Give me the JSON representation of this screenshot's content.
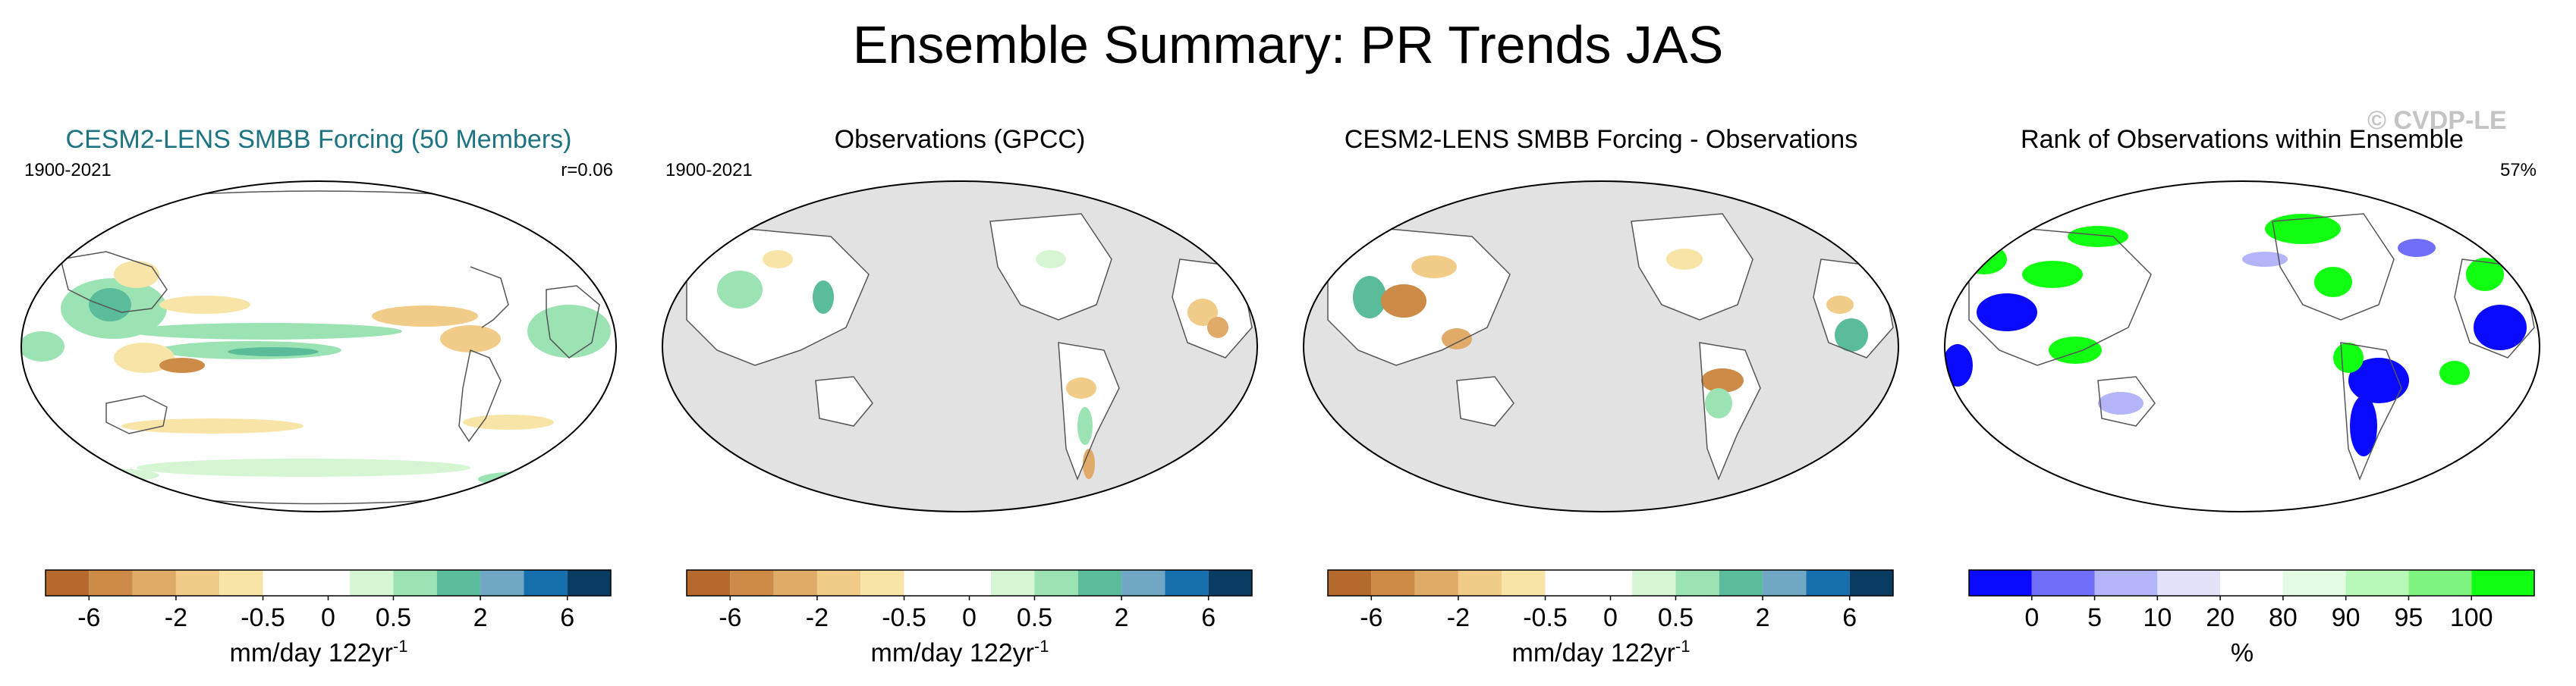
{
  "title": "Ensemble Summary: PR Trends JAS",
  "watermark": "© CVDP-LE",
  "panels": [
    {
      "title": "CESM2-LENS SMBB Forcing (50 Members)",
      "left_label": "1900-2021",
      "right_label": "r=0.06",
      "colorbar": {
        "colors": [
          "#b46a2c",
          "#cd8b48",
          "#e0aa68",
          "#f1cc88",
          "#f8e4a6",
          "#ffffff",
          "#ffffff",
          "#d5f5d3",
          "#9ce3b4",
          "#5bbc9c",
          "#70a7c4",
          "#1570ad",
          "#083c63"
        ],
        "ticks": [
          "-6",
          "-2",
          "-0.5",
          "0",
          "0.5",
          "2",
          "6"
        ],
        "units": "mm/day 122yr",
        "units_sup": "-1"
      }
    },
    {
      "title": "Observations (GPCC)",
      "left_label": "1900-2021",
      "right_label": "",
      "colorbar": {
        "colors": [
          "#b46a2c",
          "#cd8b48",
          "#e0aa68",
          "#f1cc88",
          "#f8e4a6",
          "#ffffff",
          "#ffffff",
          "#d5f5d3",
          "#9ce3b4",
          "#5bbc9c",
          "#70a7c4",
          "#1570ad",
          "#083c63"
        ],
        "ticks": [
          "-6",
          "-2",
          "-0.5",
          "0",
          "0.5",
          "2",
          "6"
        ],
        "units": "mm/day 122yr",
        "units_sup": "-1"
      }
    },
    {
      "title": "CESM2-LENS SMBB Forcing - Observations",
      "left_label": "",
      "right_label": "",
      "colorbar": {
        "colors": [
          "#b46a2c",
          "#cd8b48",
          "#e0aa68",
          "#f1cc88",
          "#f8e4a6",
          "#ffffff",
          "#ffffff",
          "#d5f5d3",
          "#9ce3b4",
          "#5bbc9c",
          "#70a7c4",
          "#1570ad",
          "#083c63"
        ],
        "ticks": [
          "-6",
          "-2",
          "-0.5",
          "0",
          "0.5",
          "2",
          "6"
        ],
        "units": "mm/day 122yr",
        "units_sup": "-1"
      }
    },
    {
      "title": "Rank of Observations within Ensemble",
      "left_label": "",
      "right_label": "57%",
      "colorbar": {
        "colors": [
          "#0a0aff",
          "#6e6ef8",
          "#b4b4f8",
          "#e2e2fa",
          "#ffffff",
          "#e4fbe4",
          "#b8f8b8",
          "#7ff57f",
          "#11ff11"
        ],
        "ticks": [
          "0",
          "5",
          "10",
          "20",
          "80",
          "90",
          "95",
          "100"
        ],
        "units": "%",
        "units_sup": ""
      }
    }
  ]
}
